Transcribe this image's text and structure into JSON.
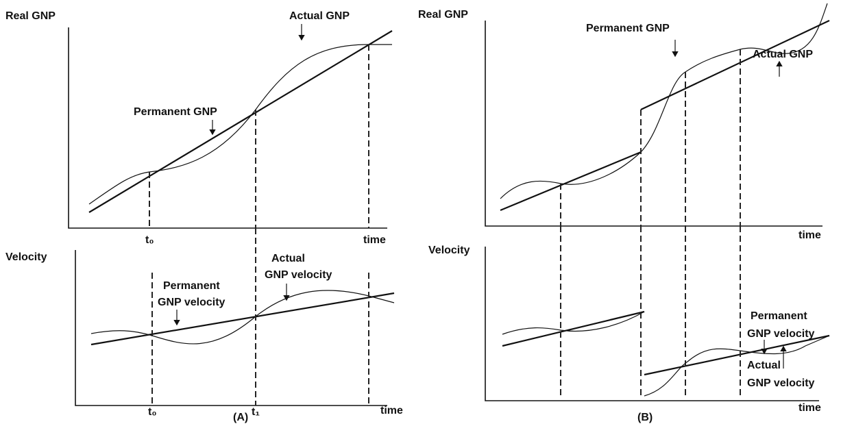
{
  "panel_a": {
    "top": {
      "y_axis_label": "Real GNP",
      "x_axis_label": "time",
      "actual_label": "Actual GNP",
      "permanent_label": "Permanent GNP",
      "tick_label": "t₀"
    },
    "bottom": {
      "y_axis_label": "Velocity",
      "x_axis_label": "time",
      "permanent_label": [
        "Permanent",
        "GNP velocity"
      ],
      "actual_label": [
        "Actual",
        "GNP velocity"
      ],
      "tick_labels": [
        "t₀",
        "t₁"
      ]
    },
    "caption": "(A)"
  },
  "panel_b": {
    "top": {
      "y_axis_label": "Real GNP",
      "x_axis_label": "time",
      "permanent_label": "Permanent GNP",
      "actual_label": "Actual GNP"
    },
    "bottom": {
      "y_axis_label": "Velocity",
      "x_axis_label": "time",
      "permanent_label": [
        "Permanent",
        "GNP velocity"
      ],
      "actual_label": [
        "Actual",
        "GNP velocity"
      ]
    },
    "caption": "(B)"
  }
}
